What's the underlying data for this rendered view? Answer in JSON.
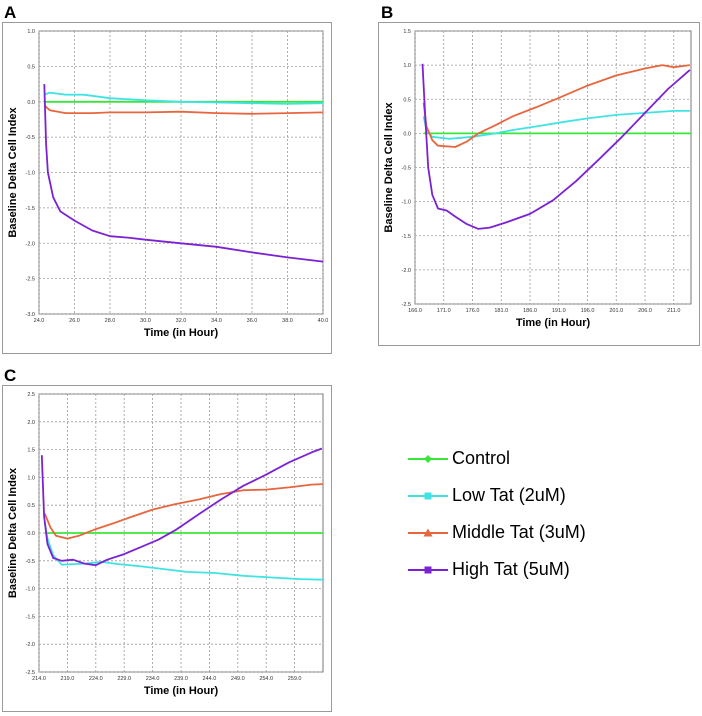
{
  "panels": [
    "A",
    "B",
    "C"
  ],
  "legend": [
    {
      "label": "Control",
      "color": "#39e639"
    },
    {
      "label": "Low Tat (2uM)",
      "color": "#40e3e3"
    },
    {
      "label": "Middle Tat (3uM)",
      "color": "#e8663e"
    },
    {
      "label": "High Tat (5uM)",
      "color": "#7b22d4"
    }
  ],
  "chart_data": [
    {
      "type": "line",
      "panel": "A",
      "xlabel": "Time (in Hour)",
      "ylabel": "Baseline Delta Cell Index",
      "xlim": [
        24.0,
        40.0
      ],
      "ylim": [
        -3.0,
        1.0
      ],
      "x_ticks": [
        "24.0",
        "26.0",
        "28.0",
        "30.0",
        "32.0",
        "34.0",
        "36.0",
        "38.0",
        "40.0"
      ],
      "y_ticks": [
        "1.0",
        "0.5",
        "0.0",
        "-0.5",
        "-1.0",
        "-1.5",
        "-2.0",
        "-2.5",
        "-3.0"
      ],
      "series": [
        {
          "name": "Control",
          "color": "#39e639",
          "points": [
            [
              24.3,
              0.0
            ],
            [
              40.0,
              0.0
            ]
          ]
        },
        {
          "name": "Low Tat (2uM)",
          "color": "#40e3e3",
          "points": [
            [
              24.3,
              0.1
            ],
            [
              24.6,
              0.13
            ],
            [
              25.5,
              0.1
            ],
            [
              26.5,
              0.1
            ],
            [
              28,
              0.05
            ],
            [
              30,
              0.02
            ],
            [
              32,
              0.0
            ],
            [
              34,
              -0.01
            ],
            [
              36,
              -0.02
            ],
            [
              38,
              -0.03
            ],
            [
              40,
              -0.02
            ]
          ]
        },
        {
          "name": "Middle Tat (3uM)",
          "color": "#e8663e",
          "points": [
            [
              24.3,
              -0.05
            ],
            [
              24.6,
              -0.12
            ],
            [
              25.5,
              -0.16
            ],
            [
              27,
              -0.16
            ],
            [
              28,
              -0.15
            ],
            [
              30,
              -0.15
            ],
            [
              32,
              -0.14
            ],
            [
              34,
              -0.16
            ],
            [
              36,
              -0.17
            ],
            [
              38,
              -0.16
            ],
            [
              40,
              -0.15
            ]
          ]
        },
        {
          "name": "High Tat (5uM)",
          "color": "#7b22d4",
          "points": [
            [
              24.3,
              0.25
            ],
            [
              24.4,
              -0.6
            ],
            [
              24.5,
              -1.0
            ],
            [
              24.8,
              -1.35
            ],
            [
              25.2,
              -1.55
            ],
            [
              26,
              -1.68
            ],
            [
              27,
              -1.82
            ],
            [
              28,
              -1.9
            ],
            [
              29,
              -1.92
            ],
            [
              30,
              -1.95
            ],
            [
              32,
              -2.0
            ],
            [
              34,
              -2.05
            ],
            [
              36,
              -2.13
            ],
            [
              38,
              -2.2
            ],
            [
              40,
              -2.26
            ]
          ]
        }
      ]
    },
    {
      "type": "line",
      "panel": "B",
      "xlabel": "Time (in Hour)",
      "ylabel": "Baseline Delta Cell Index",
      "xlim": [
        166.0,
        214.0
      ],
      "ylim": [
        -2.5,
        1.5
      ],
      "x_ticks": [
        "166.0",
        "171.0",
        "176.0",
        "181.0",
        "186.0",
        "191.0",
        "196.0",
        "201.0",
        "206.0",
        "211.0"
      ],
      "y_ticks": [
        "1.5",
        "1.0",
        "0.5",
        "0.0",
        "-0.5",
        "-1.0",
        "-1.5",
        "-2.0",
        "-2.5"
      ],
      "series": [
        {
          "name": "Control",
          "color": "#39e639",
          "points": [
            [
              167.5,
              0.0
            ],
            [
              214.0,
              0.0
            ]
          ]
        },
        {
          "name": "Low Tat (2uM)",
          "color": "#40e3e3",
          "points": [
            [
              167.5,
              0.25
            ],
            [
              168,
              0.05
            ],
            [
              169,
              -0.05
            ],
            [
              172,
              -0.08
            ],
            [
              176,
              -0.05
            ],
            [
              180,
              0.0
            ],
            [
              183,
              0.05
            ],
            [
              187,
              0.1
            ],
            [
              192,
              0.17
            ],
            [
              196,
              0.22
            ],
            [
              201,
              0.27
            ],
            [
              206,
              0.3
            ],
            [
              211,
              0.33
            ],
            [
              213.8,
              0.33
            ]
          ]
        },
        {
          "name": "Middle Tat (3uM)",
          "color": "#e8663e",
          "points": [
            [
              167.5,
              0.45
            ],
            [
              168,
              0.1
            ],
            [
              169,
              -0.1
            ],
            [
              170,
              -0.18
            ],
            [
              173,
              -0.2
            ],
            [
              175,
              -0.12
            ],
            [
              177,
              0.0
            ],
            [
              180,
              0.12
            ],
            [
              183,
              0.25
            ],
            [
              187,
              0.38
            ],
            [
              191,
              0.52
            ],
            [
              196,
              0.7
            ],
            [
              201,
              0.85
            ],
            [
              206,
              0.95
            ],
            [
              209,
              1.0
            ],
            [
              211,
              0.97
            ],
            [
              213.8,
              1.0
            ]
          ]
        },
        {
          "name": "High Tat (5uM)",
          "color": "#7b22d4",
          "points": [
            [
              167.3,
              1.02
            ],
            [
              167.8,
              0.2
            ],
            [
              168.3,
              -0.5
            ],
            [
              169,
              -0.9
            ],
            [
              170,
              -1.1
            ],
            [
              171.5,
              -1.13
            ],
            [
              173,
              -1.22
            ],
            [
              175,
              -1.33
            ],
            [
              177,
              -1.4
            ],
            [
              179,
              -1.38
            ],
            [
              182,
              -1.3
            ],
            [
              186,
              -1.18
            ],
            [
              190,
              -0.98
            ],
            [
              194,
              -0.7
            ],
            [
              198,
              -0.38
            ],
            [
              202,
              -0.05
            ],
            [
              206,
              0.3
            ],
            [
              210,
              0.65
            ],
            [
              213.8,
              0.93
            ]
          ]
        }
      ]
    },
    {
      "type": "line",
      "panel": "C",
      "xlabel": "Time (in Hour)",
      "ylabel": "Baseline Delta Cell Index",
      "xlim": [
        214.0,
        264.0
      ],
      "ylim": [
        -2.5,
        2.5
      ],
      "x_ticks": [
        "214.0",
        "219.0",
        "224.0",
        "229.0",
        "234.0",
        "239.0",
        "244.0",
        "249.0",
        "254.0",
        "259.0"
      ],
      "y_ticks": [
        "2.5",
        "2.0",
        "1.5",
        "1.0",
        "0.5",
        "0.0",
        "-0.5",
        "-1.0",
        "-1.5",
        "-2.0",
        "-2.5"
      ],
      "series": [
        {
          "name": "Control",
          "color": "#39e639",
          "points": [
            [
              215,
              0.0
            ],
            [
              264,
              0.0
            ]
          ]
        },
        {
          "name": "Low Tat (2uM)",
          "color": "#40e3e3",
          "points": [
            [
              215,
              0.2
            ],
            [
              215.5,
              -0.1
            ],
            [
              216.5,
              -0.4
            ],
            [
              218,
              -0.57
            ],
            [
              220,
              -0.56
            ],
            [
              222,
              -0.55
            ],
            [
              225,
              -0.52
            ],
            [
              228,
              -0.56
            ],
            [
              232,
              -0.6
            ],
            [
              236,
              -0.65
            ],
            [
              240,
              -0.7
            ],
            [
              245,
              -0.72
            ],
            [
              250,
              -0.77
            ],
            [
              255,
              -0.8
            ],
            [
              260,
              -0.83
            ],
            [
              264,
              -0.84
            ]
          ]
        },
        {
          "name": "Middle Tat (3uM)",
          "color": "#e8663e",
          "points": [
            [
              215,
              0.35
            ],
            [
              216,
              0.1
            ],
            [
              217,
              -0.05
            ],
            [
              219,
              -0.1
            ],
            [
              221,
              -0.05
            ],
            [
              224,
              0.07
            ],
            [
              227,
              0.17
            ],
            [
              230,
              0.28
            ],
            [
              234,
              0.42
            ],
            [
              238,
              0.52
            ],
            [
              242,
              0.6
            ],
            [
              246,
              0.7
            ],
            [
              250,
              0.77
            ],
            [
              254,
              0.78
            ],
            [
              258,
              0.82
            ],
            [
              262,
              0.87
            ],
            [
              264,
              0.88
            ]
          ]
        },
        {
          "name": "High Tat (5uM)",
          "color": "#7b22d4",
          "points": [
            [
              214.5,
              1.4
            ],
            [
              214.9,
              0.3
            ],
            [
              215.5,
              -0.2
            ],
            [
              216.5,
              -0.45
            ],
            [
              218,
              -0.5
            ],
            [
              220,
              -0.48
            ],
            [
              222,
              -0.55
            ],
            [
              224,
              -0.58
            ],
            [
              226,
              -0.48
            ],
            [
              229,
              -0.38
            ],
            [
              232,
              -0.25
            ],
            [
              235,
              -0.12
            ],
            [
              238,
              0.05
            ],
            [
              242,
              0.33
            ],
            [
              246,
              0.6
            ],
            [
              250,
              0.85
            ],
            [
              254,
              1.05
            ],
            [
              258,
              1.27
            ],
            [
              262,
              1.45
            ],
            [
              263.8,
              1.52
            ]
          ]
        }
      ]
    }
  ]
}
